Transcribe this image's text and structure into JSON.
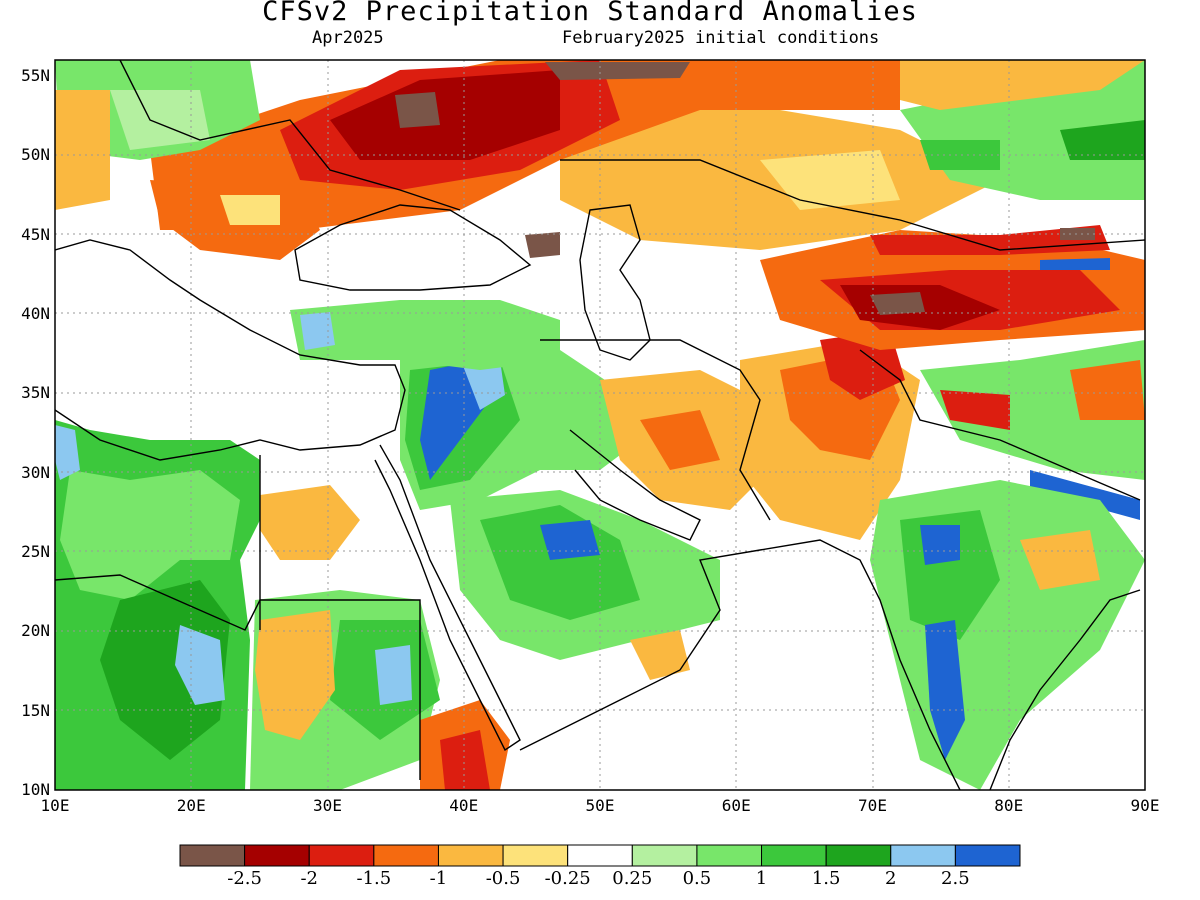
{
  "title": "CFSv2 Precipitation Standard Anomalies",
  "target_month": "Apr2025",
  "initial_conditions": "February2025 initial conditions",
  "map": {
    "lon_range": [
      10,
      90
    ],
    "lat_range": [
      10,
      56
    ],
    "lat_ticks": [
      "55N",
      "50N",
      "45N",
      "40N",
      "35N",
      "30N",
      "25N",
      "20N",
      "15N",
      "10N"
    ],
    "lat_values": [
      55,
      50,
      45,
      40,
      35,
      30,
      25,
      20,
      15,
      10
    ],
    "lon_ticks": [
      "10E",
      "20E",
      "30E",
      "40E",
      "50E",
      "60E",
      "70E",
      "80E",
      "90E"
    ],
    "lon_values": [
      10,
      20,
      30,
      40,
      50,
      60,
      70,
      80,
      90
    ]
  },
  "colorbar": {
    "colors": [
      "#7a5548",
      "#a50000",
      "#dc1e10",
      "#f56a10",
      "#fab840",
      "#fde27a",
      "#ffffff",
      "#b4f0a0",
      "#78e66a",
      "#3cc83c",
      "#1ea51e",
      "#8cc8f0",
      "#1e64d2"
    ],
    "labels": [
      "-2.5",
      "-2",
      "-1.5",
      "-1",
      "-0.5",
      "-0.25",
      "0.25",
      "0.5",
      "1",
      "1.5",
      "2",
      "2.5"
    ]
  }
}
